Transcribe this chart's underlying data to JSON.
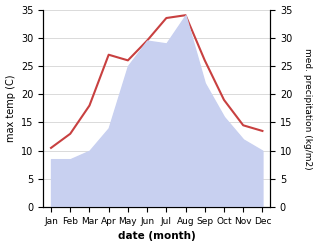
{
  "months": [
    "Jan",
    "Feb",
    "Mar",
    "Apr",
    "May",
    "Jun",
    "Jul",
    "Aug",
    "Sep",
    "Oct",
    "Nov",
    "Dec"
  ],
  "max_temp": [
    10.5,
    13.0,
    18.0,
    27.0,
    26.0,
    29.5,
    33.5,
    34.0,
    26.0,
    19.0,
    14.5,
    13.5
  ],
  "precipitation": [
    8.5,
    8.5,
    10.0,
    14.0,
    25.0,
    29.5,
    29.0,
    34.0,
    22.0,
    16.0,
    12.0,
    10.0
  ],
  "temp_color": "#c84040",
  "precip_fill_color": "#c8d0f0",
  "temp_ylim": [
    0,
    35
  ],
  "precip_ylim": [
    0,
    35
  ],
  "yticks": [
    0,
    5,
    10,
    15,
    20,
    25,
    30,
    35
  ],
  "xlabel": "date (month)",
  "ylabel_left": "max temp (C)",
  "ylabel_right": "med. precipitation (kg/m2)",
  "background_color": "#ffffff",
  "grid_color": "#cccccc"
}
